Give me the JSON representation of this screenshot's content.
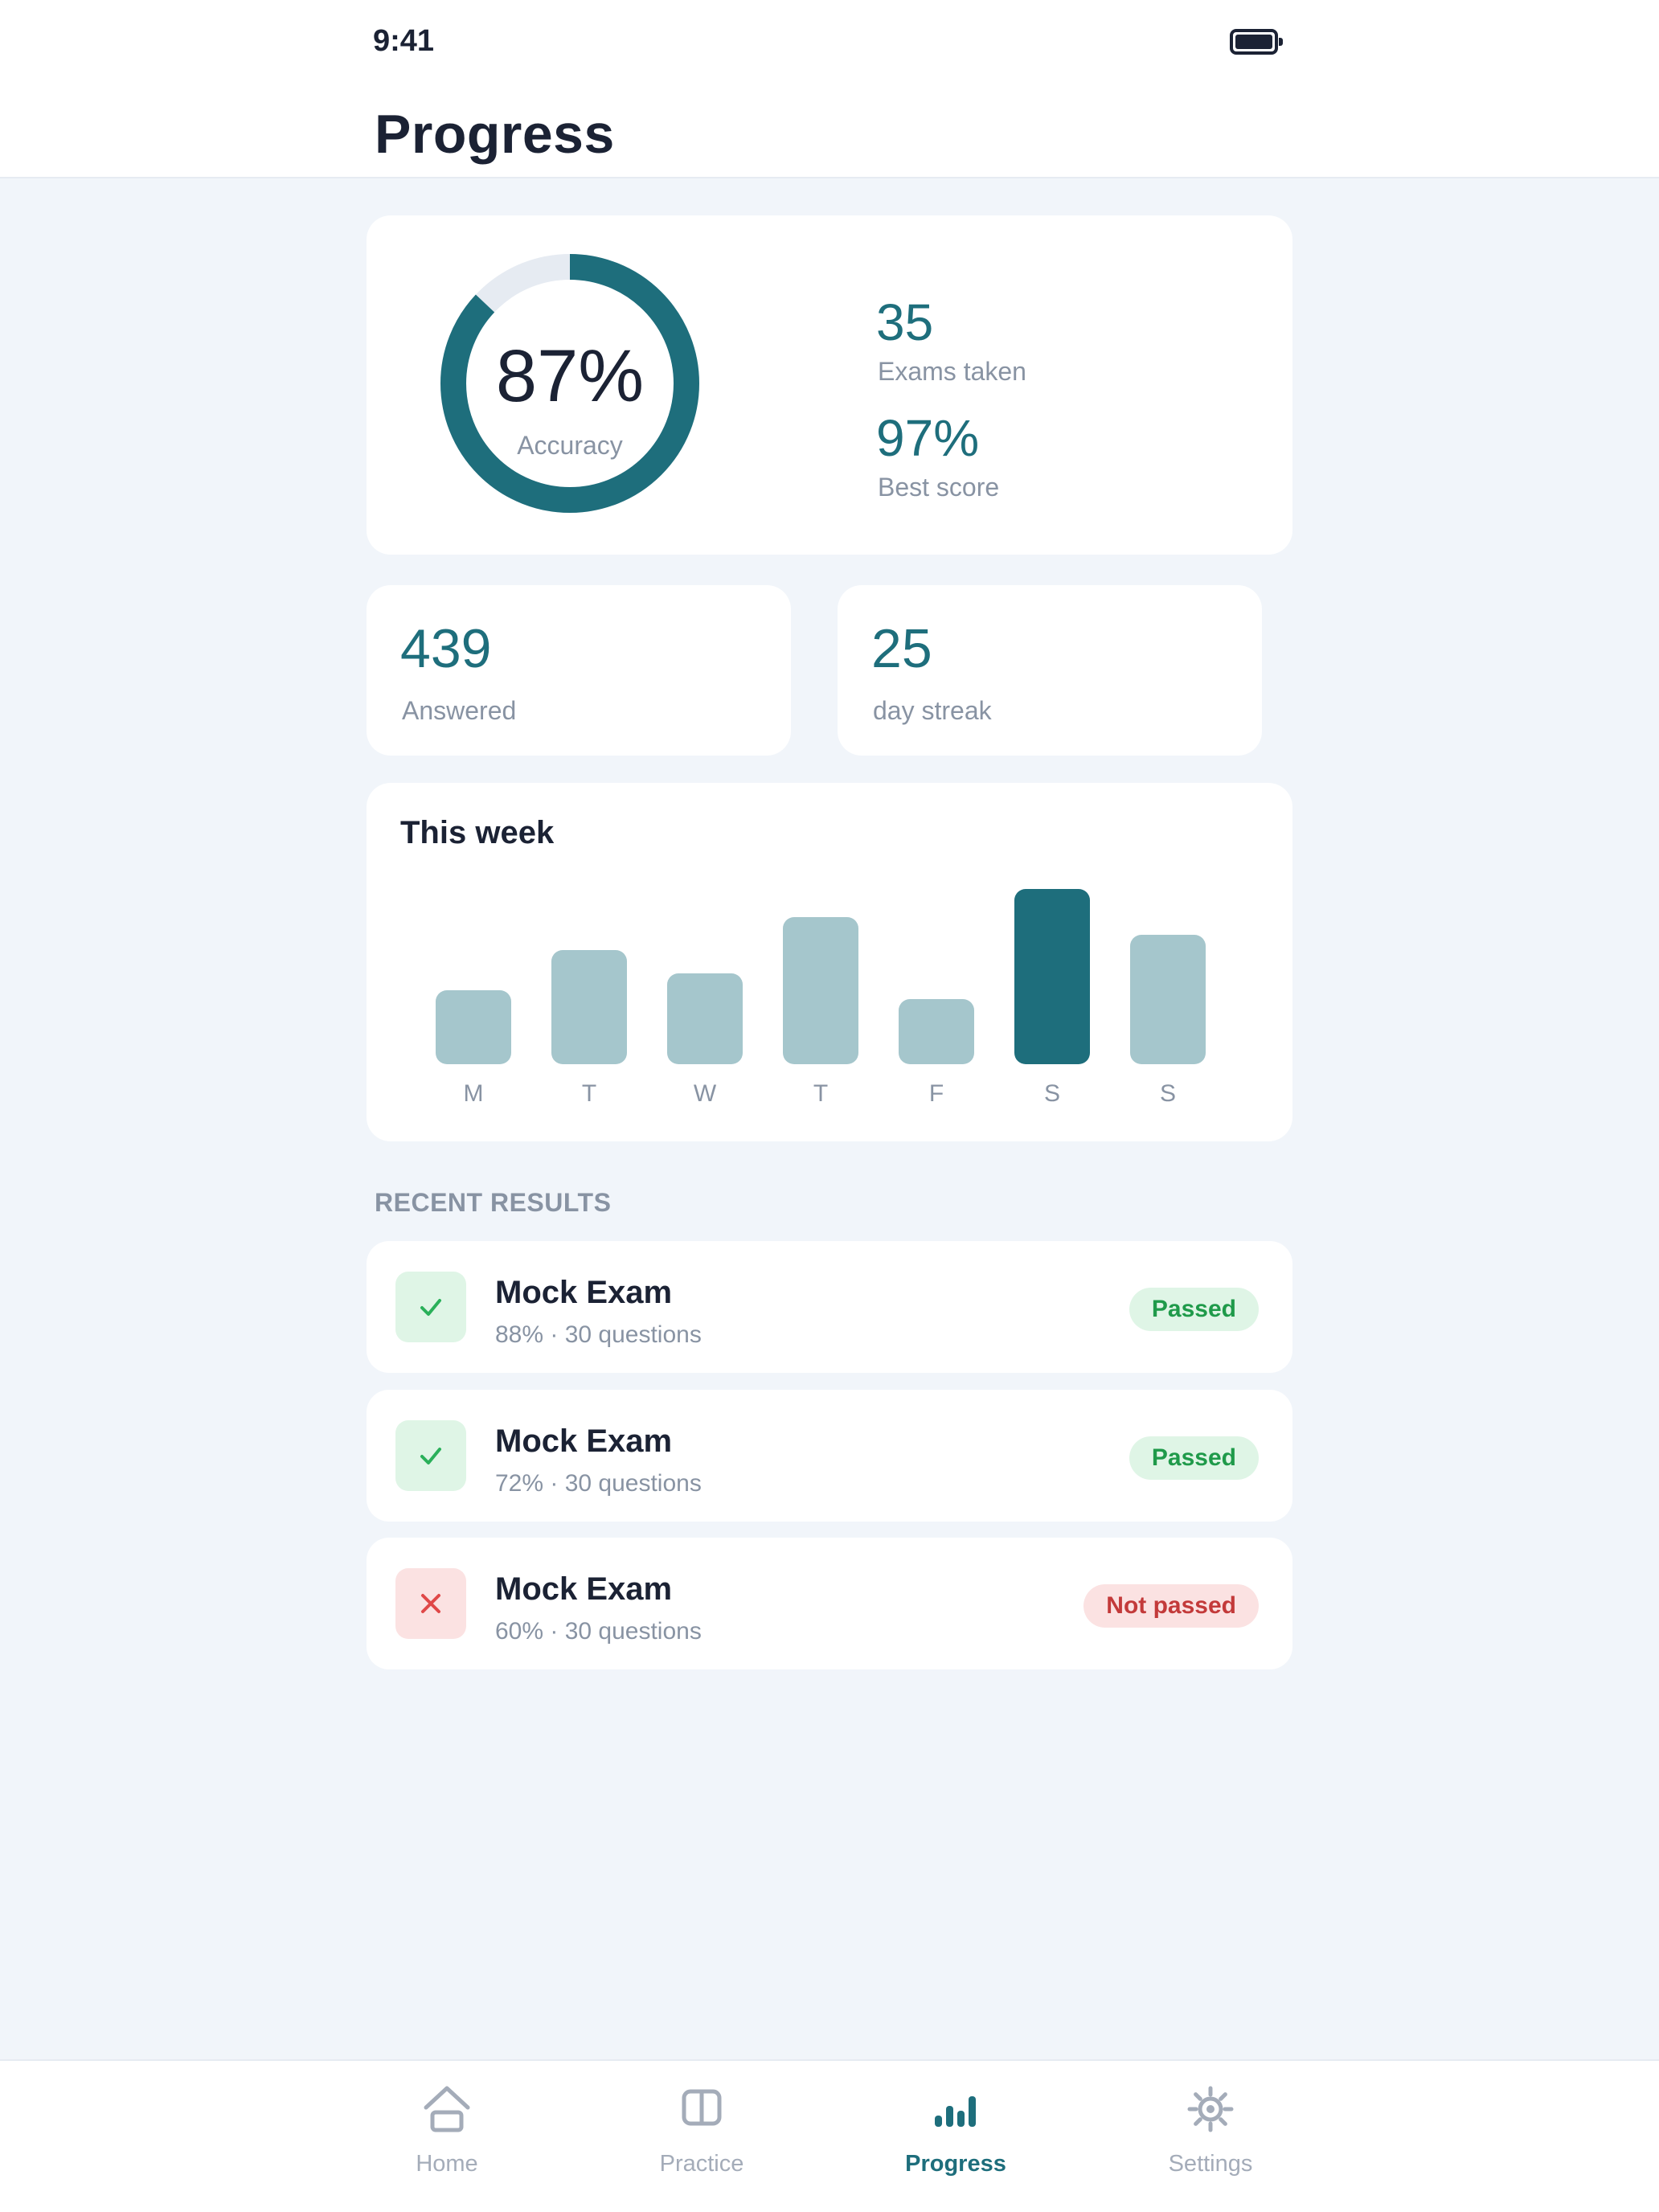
{
  "status_bar": {
    "time": "9:41"
  },
  "header": {
    "title": "Progress"
  },
  "summary": {
    "accuracy_value": "87%",
    "accuracy_label": "Accuracy",
    "accuracy_fraction": 0.87,
    "exams_taken_value": "35",
    "exams_taken_label": "Exams taken",
    "best_score_value": "97%",
    "best_score_label": "Best score"
  },
  "answered": {
    "value": "439",
    "label": "Answered"
  },
  "streak": {
    "value": "25",
    "label": "day streak"
  },
  "week": {
    "title": "This week",
    "days": [
      {
        "label": "M",
        "value": 0.42
      },
      {
        "label": "T",
        "value": 0.65
      },
      {
        "label": "W",
        "value": 0.52
      },
      {
        "label": "T",
        "value": 0.84
      },
      {
        "label": "F",
        "value": 0.37
      },
      {
        "label": "S",
        "value": 1.0,
        "active": true
      },
      {
        "label": "S",
        "value": 0.74
      }
    ]
  },
  "recent": {
    "section_title": "RECENT RESULTS",
    "items": [
      {
        "title": "Mock Exam",
        "subtitle": "88% · 30 questions",
        "status": "Passed",
        "passed": true
      },
      {
        "title": "Mock Exam",
        "subtitle": "72% · 30 questions",
        "status": "Passed",
        "passed": true
      },
      {
        "title": "Mock Exam",
        "subtitle": "60% · 30 questions",
        "status": "Not passed",
        "passed": false
      }
    ]
  },
  "tabs": [
    {
      "label": "Home",
      "icon": "home-icon",
      "active": false
    },
    {
      "label": "Practice",
      "icon": "book-icon",
      "active": false
    },
    {
      "label": "Progress",
      "icon": "bar-chart-icon",
      "active": true
    },
    {
      "label": "Settings",
      "icon": "gear-icon",
      "active": false
    }
  ],
  "colors": {
    "accent": "#1e6e7c",
    "bar_inactive": "#a5c6cc",
    "ring_track": "#e6ebf2",
    "pass": "#1f9a4a",
    "fail": "#c33a3a"
  }
}
